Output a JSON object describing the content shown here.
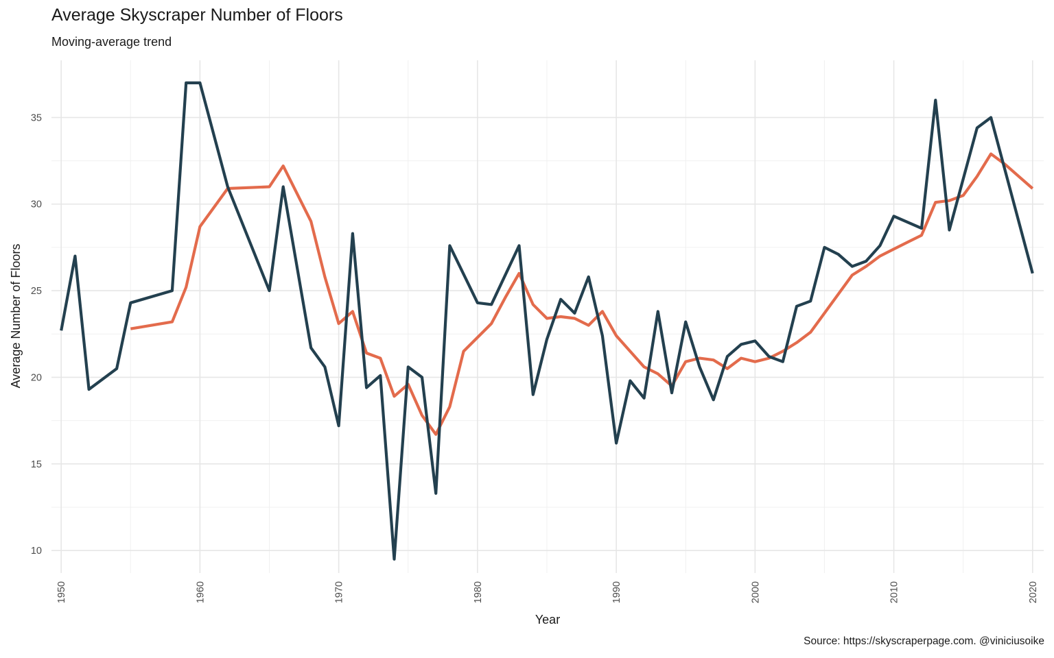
{
  "chart_data": {
    "type": "line",
    "title": "Average Skyscraper Number of Floors",
    "subtitle": "Moving-average trend",
    "caption": "Source: https://skyscraperpage.com. @viniciusoike",
    "xlabel": "Year",
    "ylabel": "Average Number of Floors",
    "xlim": [
      1949.3,
      2020.8
    ],
    "ylim": [
      8.7,
      38.3
    ],
    "x_ticks": [
      1950,
      1960,
      1970,
      1980,
      1990,
      2000,
      2010,
      2020
    ],
    "y_ticks": [
      10,
      15,
      20,
      25,
      30,
      35
    ],
    "grid": true,
    "legend": "none",
    "series": [
      {
        "color": "#23404f",
        "points": [
          [
            1950,
            22.7
          ],
          [
            1951,
            27.0
          ],
          [
            1952,
            19.3
          ],
          [
            1954,
            20.5
          ],
          [
            1955,
            24.3
          ],
          [
            1958,
            25.0
          ],
          [
            1959,
            37.0
          ],
          [
            1960,
            37.0
          ],
          [
            1962,
            31.0
          ],
          [
            1965,
            25.0
          ],
          [
            1966,
            31.0
          ],
          [
            1968,
            21.7
          ],
          [
            1969,
            20.6
          ],
          [
            1970,
            17.2
          ],
          [
            1971,
            28.3
          ],
          [
            1972,
            19.4
          ],
          [
            1973,
            20.1
          ],
          [
            1974,
            9.5
          ],
          [
            1975,
            20.6
          ],
          [
            1976,
            20.0
          ],
          [
            1977,
            13.3
          ],
          [
            1978,
            27.6
          ],
          [
            1980,
            24.3
          ],
          [
            1981,
            24.2
          ],
          [
            1983,
            27.6
          ],
          [
            1984,
            19.0
          ],
          [
            1985,
            22.2
          ],
          [
            1986,
            24.5
          ],
          [
            1987,
            23.7
          ],
          [
            1988,
            25.8
          ],
          [
            1989,
            22.4
          ],
          [
            1990,
            16.2
          ],
          [
            1991,
            19.8
          ],
          [
            1992,
            18.8
          ],
          [
            1993,
            23.8
          ],
          [
            1994,
            19.1
          ],
          [
            1995,
            23.2
          ],
          [
            1996,
            20.6
          ],
          [
            1997,
            18.7
          ],
          [
            1998,
            21.2
          ],
          [
            1999,
            21.9
          ],
          [
            2000,
            22.1
          ],
          [
            2001,
            21.2
          ],
          [
            2002,
            20.9
          ],
          [
            2003,
            24.1
          ],
          [
            2004,
            24.4
          ],
          [
            2005,
            27.5
          ],
          [
            2006,
            27.1
          ],
          [
            2007,
            26.4
          ],
          [
            2008,
            26.7
          ],
          [
            2009,
            27.6
          ],
          [
            2010,
            29.3
          ],
          [
            2012,
            28.6
          ],
          [
            2013,
            36.0
          ],
          [
            2014,
            28.5
          ],
          [
            2016,
            34.4
          ],
          [
            2017,
            35.0
          ],
          [
            2020,
            26.0
          ]
        ]
      },
      {
        "color": "#e36b4c",
        "points": [
          [
            1955,
            22.8
          ],
          [
            1958,
            23.2
          ],
          [
            1959,
            25.2
          ],
          [
            1960,
            28.7
          ],
          [
            1962,
            30.9
          ],
          [
            1965,
            31.0
          ],
          [
            1966,
            32.2
          ],
          [
            1968,
            29.0
          ],
          [
            1969,
            25.8
          ],
          [
            1970,
            23.1
          ],
          [
            1971,
            23.8
          ],
          [
            1972,
            21.4
          ],
          [
            1973,
            21.1
          ],
          [
            1974,
            18.9
          ],
          [
            1975,
            19.6
          ],
          [
            1976,
            17.8
          ],
          [
            1977,
            16.7
          ],
          [
            1978,
            18.3
          ],
          [
            1979,
            21.5
          ],
          [
            1981,
            23.1
          ],
          [
            1982,
            24.6
          ],
          [
            1983,
            26.0
          ],
          [
            1984,
            24.2
          ],
          [
            1985,
            23.4
          ],
          [
            1986,
            23.5
          ],
          [
            1987,
            23.4
          ],
          [
            1988,
            23.0
          ],
          [
            1989,
            23.8
          ],
          [
            1990,
            22.4
          ],
          [
            1991,
            21.5
          ],
          [
            1992,
            20.6
          ],
          [
            1993,
            20.2
          ],
          [
            1994,
            19.5
          ],
          [
            1995,
            20.9
          ],
          [
            1996,
            21.1
          ],
          [
            1997,
            21.0
          ],
          [
            1998,
            20.5
          ],
          [
            1999,
            21.1
          ],
          [
            2000,
            20.9
          ],
          [
            2001,
            21.1
          ],
          [
            2002,
            21.5
          ],
          [
            2003,
            22.0
          ],
          [
            2004,
            22.6
          ],
          [
            2005,
            23.7
          ],
          [
            2006,
            24.8
          ],
          [
            2007,
            25.9
          ],
          [
            2008,
            26.4
          ],
          [
            2009,
            27.0
          ],
          [
            2010,
            27.4
          ],
          [
            2011,
            27.8
          ],
          [
            2012,
            28.2
          ],
          [
            2013,
            30.1
          ],
          [
            2014,
            30.2
          ],
          [
            2015,
            30.5
          ],
          [
            2016,
            31.6
          ],
          [
            2017,
            32.9
          ],
          [
            2018,
            32.3
          ],
          [
            2019,
            31.6
          ],
          [
            2020,
            30.9
          ]
        ]
      }
    ]
  }
}
